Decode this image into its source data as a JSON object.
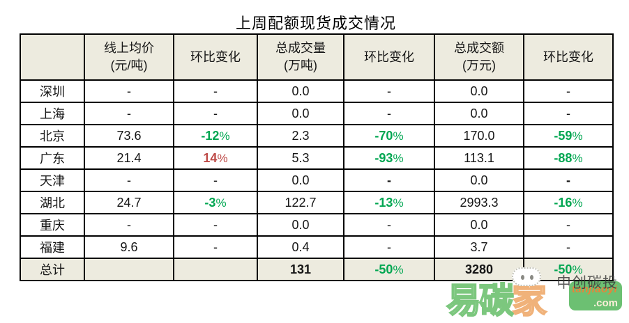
{
  "title": "上周配额现货成交情况",
  "colors": {
    "percent_down_green": "#00A651",
    "percent_up_red": "#BE4B48",
    "band_bg": "#EDEBDF",
    "border": "#000000"
  },
  "table": {
    "columns": [
      {
        "l1": "",
        "l2": ""
      },
      {
        "l1": "线上均价",
        "l2": "(元/吨)"
      },
      {
        "l1": "环比变化",
        "l2": ""
      },
      {
        "l1": "总成交量",
        "l2": "(万吨)"
      },
      {
        "l1": "环比变化",
        "l2": ""
      },
      {
        "l1": "总成交额",
        "l2": "(万元)"
      },
      {
        "l1": "环比变化",
        "l2": ""
      }
    ],
    "rows": [
      {
        "region": "深圳",
        "total": false,
        "cells": [
          {
            "v": "-",
            "c": "plain"
          },
          {
            "v": "-",
            "c": "plain"
          },
          {
            "v": "0.0",
            "c": "plain"
          },
          {
            "v": "-",
            "c": "plain"
          },
          {
            "v": "0.0",
            "c": "plain"
          },
          {
            "v": "-",
            "c": "plain"
          }
        ]
      },
      {
        "region": "上海",
        "total": false,
        "cells": [
          {
            "v": "-",
            "c": "plain"
          },
          {
            "v": "-",
            "c": "plain"
          },
          {
            "v": "0.0",
            "c": "plain"
          },
          {
            "v": "-",
            "c": "plain"
          },
          {
            "v": "0.0",
            "c": "plain"
          },
          {
            "v": "-",
            "c": "plain"
          }
        ]
      },
      {
        "region": "北京",
        "total": false,
        "cells": [
          {
            "v": "73.6",
            "c": "plain"
          },
          {
            "v": "-12%",
            "c": "green"
          },
          {
            "v": "2.3",
            "c": "plain"
          },
          {
            "v": "-70%",
            "c": "green"
          },
          {
            "v": "170.0",
            "c": "plain"
          },
          {
            "v": "-59%",
            "c": "green"
          }
        ]
      },
      {
        "region": "广东",
        "total": false,
        "cells": [
          {
            "v": "21.4",
            "c": "plain"
          },
          {
            "v": "14%",
            "c": "red"
          },
          {
            "v": "5.3",
            "c": "plain"
          },
          {
            "v": "-93%",
            "c": "green"
          },
          {
            "v": "113.1",
            "c": "plain"
          },
          {
            "v": "-88%",
            "c": "green"
          }
        ]
      },
      {
        "region": "天津",
        "total": false,
        "cells": [
          {
            "v": "-",
            "c": "plain"
          },
          {
            "v": "-",
            "c": "plain"
          },
          {
            "v": "0.0",
            "c": "plain"
          },
          {
            "v": "-",
            "c": "bold"
          },
          {
            "v": "0.0",
            "c": "plain"
          },
          {
            "v": "-",
            "c": "bold"
          }
        ]
      },
      {
        "region": "湖北",
        "total": false,
        "cells": [
          {
            "v": "24.7",
            "c": "plain"
          },
          {
            "v": "-3%",
            "c": "green"
          },
          {
            "v": "122.7",
            "c": "plain"
          },
          {
            "v": "-13%",
            "c": "green"
          },
          {
            "v": "2993.3",
            "c": "plain"
          },
          {
            "v": "-16%",
            "c": "green"
          }
        ]
      },
      {
        "region": "重庆",
        "total": false,
        "cells": [
          {
            "v": "-",
            "c": "plain"
          },
          {
            "v": "-",
            "c": "plain"
          },
          {
            "v": "0.0",
            "c": "plain"
          },
          {
            "v": "-",
            "c": "plain"
          },
          {
            "v": "0.0",
            "c": "plain"
          },
          {
            "v": "-",
            "c": "plain"
          }
        ]
      },
      {
        "region": "福建",
        "total": false,
        "cells": [
          {
            "v": "9.6",
            "c": "plain"
          },
          {
            "v": "-",
            "c": "plain"
          },
          {
            "v": "0.4",
            "c": "plain"
          },
          {
            "v": "-",
            "c": "plain"
          },
          {
            "v": "3.7",
            "c": "plain"
          },
          {
            "v": "-",
            "c": "plain"
          }
        ]
      },
      {
        "region": "总计",
        "total": true,
        "cells": [
          {
            "v": "",
            "c": "plain"
          },
          {
            "v": "",
            "c": "plain"
          },
          {
            "v": "131",
            "c": "bold"
          },
          {
            "v": "-50%",
            "c": "green"
          },
          {
            "v": "3280",
            "c": "bold"
          },
          {
            "v": "-50%",
            "c": "green"
          }
        ]
      }
    ]
  },
  "watermark": {
    "brand_green": "易碳",
    "brand_orange": "家",
    "domain": "tanjiaoyi",
    "tld": ".com",
    "overlay": "申创碳投"
  }
}
